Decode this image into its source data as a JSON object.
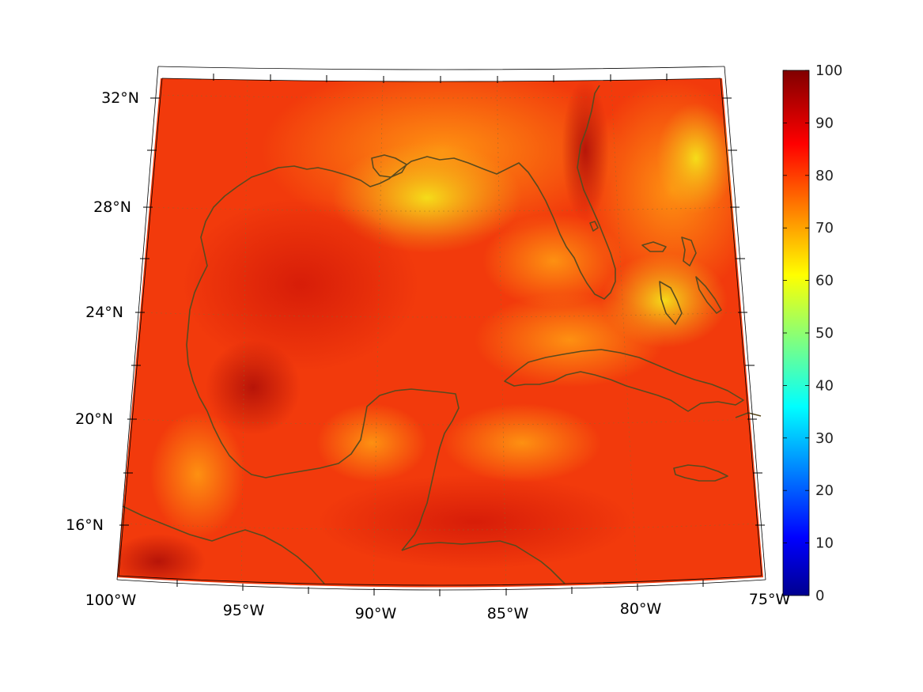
{
  "map": {
    "lon_labels": [
      "100°W",
      "95°W",
      "90°W",
      "85°W",
      "80°W",
      "75°W"
    ],
    "lat_labels": [
      "16°N",
      "20°N",
      "24°N",
      "28°N",
      "32°N"
    ],
    "region": "Gulf of Mexico and Caribbean",
    "lon_range": [
      -100,
      -75
    ],
    "lat_range": [
      14,
      33
    ],
    "coastline_color": "#5a4a1e"
  },
  "colorbar": {
    "min": 0,
    "max": 100,
    "ticks": [
      "0",
      "10",
      "20",
      "30",
      "40",
      "50",
      "60",
      "70",
      "80",
      "90",
      "100"
    ],
    "colormap": "jet"
  }
}
